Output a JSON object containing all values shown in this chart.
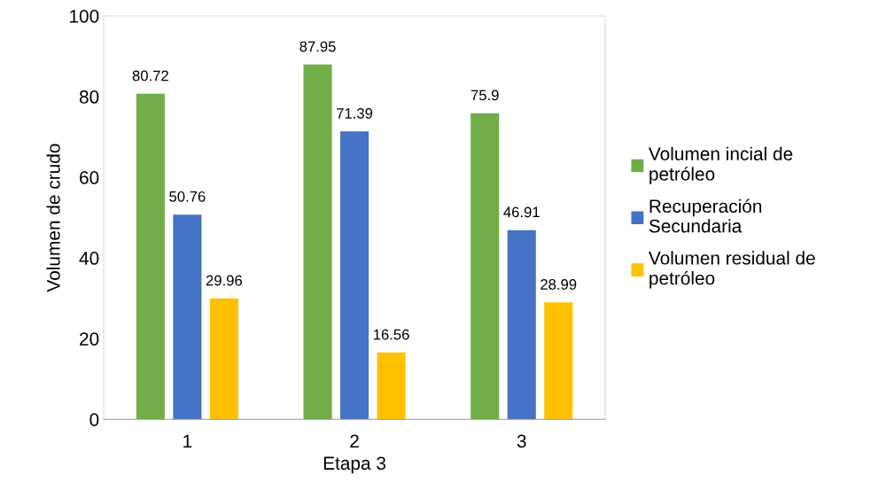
{
  "chart_data": {
    "type": "bar",
    "xlabel": "Etapa 3",
    "ylabel": "Volumen de crudo",
    "categories": [
      "1",
      "2",
      "3"
    ],
    "series": [
      {
        "name": "Volumen incial de\npetróleo",
        "color": "#70ad47",
        "values": [
          80.72,
          87.95,
          75.9
        ]
      },
      {
        "name": "Recuperación\nSecundaria",
        "color": "#4472c4",
        "values": [
          50.76,
          71.39,
          46.91
        ]
      },
      {
        "name": "Volumen residual de\npetróleo",
        "color": "#ffc000",
        "values": [
          29.96,
          16.56,
          28.99
        ]
      }
    ],
    "ylim": [
      0,
      100
    ],
    "yticks": [
      0,
      20,
      40,
      60,
      80,
      100
    ],
    "data_labels": true,
    "grid": false,
    "legend": "right"
  }
}
